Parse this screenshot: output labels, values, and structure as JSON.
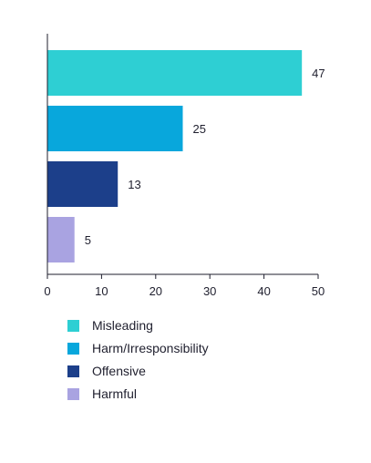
{
  "chart_data": {
    "type": "bar",
    "orientation": "horizontal",
    "categories": [
      "Misleading",
      "Harm/Irresponsibility",
      "Offensive",
      "Harmful"
    ],
    "values": [
      47,
      25,
      13,
      5
    ],
    "colors": [
      "#2ecfd3",
      "#08a7dc",
      "#1c3f8a",
      "#a9a3e1"
    ],
    "xlim": [
      0,
      50
    ],
    "xticks": [
      0,
      10,
      20,
      30,
      40,
      50
    ],
    "title": "",
    "xlabel": "",
    "ylabel": "",
    "grid": false,
    "legend": {
      "placement": "bottom",
      "entries": [
        "Misleading",
        "Harm/Irresponsibility",
        "Offensive",
        "Harmful"
      ]
    }
  },
  "legend_items": [
    {
      "label": "Misleading",
      "color": "#2ecfd3"
    },
    {
      "label": "Harm/Irresponsibility",
      "color": "#08a7dc"
    },
    {
      "label": "Offensive",
      "color": "#1c3f8a"
    },
    {
      "label": "Harmful",
      "color": "#a9a3e1"
    }
  ]
}
